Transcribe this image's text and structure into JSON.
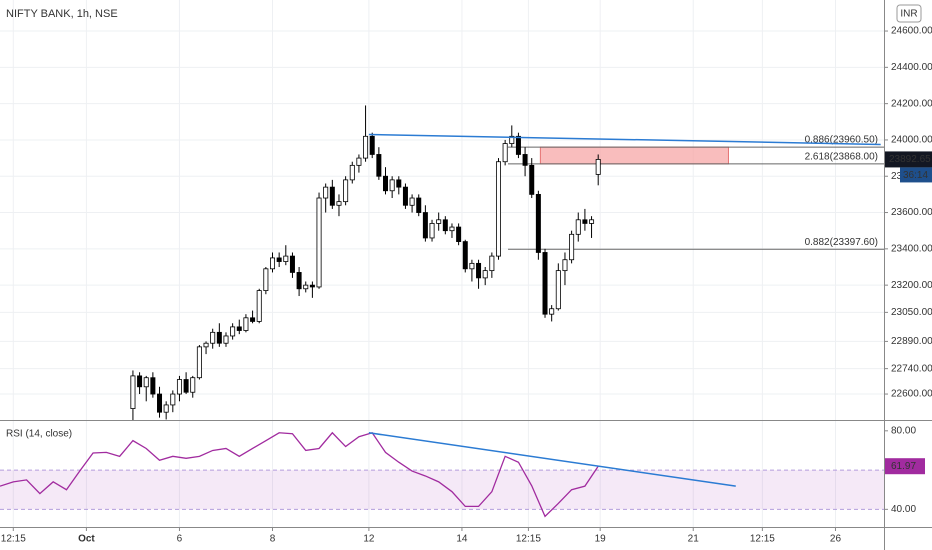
{
  "chart_data": [
    {
      "type": "candlestick",
      "title": "NIFTY BANK, 1h, NSE",
      "currency": "INR",
      "x": [
        0,
        1,
        2,
        3,
        4,
        5,
        6,
        7,
        8,
        9,
        10,
        11,
        12,
        13,
        14,
        15,
        16,
        17,
        18,
        19,
        20,
        21,
        22,
        23,
        24,
        25,
        26,
        27,
        28,
        29,
        30,
        31,
        32,
        33,
        34,
        35,
        36,
        37,
        38,
        39,
        40,
        41,
        42,
        43,
        44,
        45,
        46,
        47,
        48,
        49,
        50,
        51,
        52,
        53,
        54,
        55,
        56,
        57,
        58,
        59,
        60,
        61,
        62,
        63,
        64,
        65,
        66,
        67,
        68,
        69,
        70
      ],
      "open": [
        22520,
        22700,
        22640,
        22690,
        22600,
        22500,
        22540,
        22600,
        22680,
        22610,
        22690,
        22860,
        22880,
        22940,
        22880,
        22920,
        22970,
        22950,
        23020,
        23000,
        23170,
        23290,
        23350,
        23330,
        23360,
        23270,
        23180,
        23200,
        23190,
        23680,
        23740,
        23640,
        23660,
        23780,
        23860,
        23900,
        24020,
        23920,
        23800,
        23720,
        23780,
        23740,
        23640,
        23680,
        23600,
        23460,
        23540,
        23560,
        23500,
        23520,
        23440,
        23290,
        23320,
        23240,
        23280,
        23360,
        23880,
        23980,
        24020,
        23920,
        23860,
        23700,
        23380,
        23040,
        23070,
        23280,
        23340,
        23480,
        23560,
        23540,
        23810
      ],
      "high": [
        22730,
        22720,
        22700,
        22720,
        22640,
        22560,
        22620,
        22700,
        22720,
        22700,
        22870,
        22890,
        22960,
        22990,
        22940,
        22990,
        23010,
        23040,
        23060,
        23180,
        23300,
        23380,
        23380,
        23420,
        23380,
        23300,
        23220,
        23220,
        23710,
        23760,
        23780,
        23700,
        23800,
        23880,
        23920,
        24190,
        24040,
        23960,
        23850,
        23800,
        23800,
        23760,
        23700,
        23700,
        23640,
        23560,
        23600,
        23580,
        23540,
        23540,
        23450,
        23340,
        23340,
        23300,
        23380,
        23900,
        24000,
        24080,
        24040,
        23960,
        23900,
        23720,
        23400,
        23090,
        23320,
        23380,
        23500,
        23600,
        23620,
        23580,
        23920
      ],
      "low": [
        22450,
        22600,
        22560,
        22580,
        22470,
        22460,
        22500,
        22560,
        22600,
        22580,
        22680,
        22820,
        22850,
        22860,
        22860,
        22900,
        22930,
        22940,
        22990,
        22990,
        23150,
        23270,
        23300,
        23310,
        23240,
        23140,
        23160,
        23130,
        23180,
        23600,
        23620,
        23580,
        23640,
        23760,
        23820,
        23880,
        23900,
        23780,
        23700,
        23680,
        23700,
        23620,
        23600,
        23580,
        23440,
        23440,
        23500,
        23480,
        23460,
        23420,
        23270,
        23220,
        23180,
        23200,
        23240,
        23340,
        23860,
        23960,
        23900,
        23800,
        23680,
        23340,
        23020,
        23000,
        23060,
        23200,
        23320,
        23440,
        23500,
        23460,
        23750
      ],
      "close": [
        22700,
        22640,
        22690,
        22600,
        22500,
        22540,
        22600,
        22680,
        22610,
        22690,
        22860,
        22880,
        22940,
        22880,
        22920,
        22970,
        22950,
        23020,
        23000,
        23170,
        23290,
        23350,
        23330,
        23360,
        23270,
        23180,
        23200,
        23190,
        23680,
        23740,
        23640,
        23660,
        23780,
        23860,
        23900,
        24020,
        23920,
        23800,
        23720,
        23780,
        23740,
        23640,
        23680,
        23600,
        23460,
        23540,
        23560,
        23500,
        23520,
        23440,
        23290,
        23320,
        23240,
        23280,
        23360,
        23880,
        23980,
        24020,
        23920,
        23860,
        23700,
        23380,
        23040,
        23070,
        23280,
        23340,
        23480,
        23560,
        23540,
        23560,
        23892.65
      ],
      "up_color": "#ffffff",
      "down_color": "#000000",
      "xlim": [
        -20,
        113
      ],
      "ylim": [
        22457,
        24771
      ],
      "yticks": [
        {
          "value": 24600,
          "label": "24600.00"
        },
        {
          "value": 24400,
          "label": "24400.00"
        },
        {
          "value": 24200,
          "label": "24200.00"
        },
        {
          "value": 24000,
          "label": "24000.00"
        },
        {
          "value": 23800,
          "label": "23800.00"
        },
        {
          "value": 23600,
          "label": "23600.00"
        },
        {
          "value": 23400,
          "label": "23400.00"
        },
        {
          "value": 23200,
          "label": "23200.00"
        },
        {
          "value": 23050,
          "label": "23050.00"
        },
        {
          "value": 22890,
          "label": "22890.00"
        },
        {
          "value": 22740,
          "label": "22740.00"
        },
        {
          "value": 22600,
          "label": "22600.00"
        }
      ],
      "xticks": [
        {
          "value": -18,
          "label": "12:15"
        },
        {
          "value": -7,
          "label": "Oct"
        },
        {
          "value": 7,
          "label": "6"
        },
        {
          "value": 21,
          "label": "8"
        },
        {
          "value": 35.5,
          "label": "12"
        },
        {
          "value": 49.5,
          "label": "14"
        },
        {
          "value": 59.5,
          "label": "12:15"
        },
        {
          "value": 70.3,
          "label": "19"
        },
        {
          "value": 84.3,
          "label": "21"
        },
        {
          "value": 94.7,
          "label": "12:15"
        },
        {
          "value": 105.7,
          "label": "26"
        }
      ],
      "grid": true,
      "last_price": 23892.65,
      "countdown": "36:14",
      "trend_line": {
        "x": [
          35.5,
          112.5
        ],
        "values": [
          24030,
          23975
        ],
        "color": "#2b7bd3"
      },
      "fib_levels": [
        {
          "value": 23960.5,
          "label": "0.886(23960.50)"
        },
        {
          "value": 23868,
          "label": "2.618(23868.00)"
        },
        {
          "value": 23397.6,
          "label": "0.882(23397.60)"
        }
      ],
      "zone": {
        "x": [
          61.3,
          89.6
        ],
        "values": [
          23960.5,
          23868
        ],
        "color": "#f7a1a1"
      }
    },
    {
      "type": "line",
      "title": "RSI (14, close)",
      "x": [
        -20,
        -18,
        -16,
        -14,
        -12,
        -10,
        -8,
        -6,
        -4,
        -2,
        0,
        2,
        4,
        6,
        8,
        10,
        12,
        14,
        16,
        18,
        20,
        22,
        24,
        26,
        28,
        30,
        32,
        34,
        36,
        38,
        40,
        42,
        44,
        46,
        48,
        50,
        52,
        54,
        56,
        58,
        60,
        62,
        64,
        66,
        68,
        70
      ],
      "series": [
        {
          "name": "RSI",
          "color": "#a12b9f",
          "values": [
            51.8,
            54,
            55,
            48,
            54,
            50,
            59.5,
            68.7,
            69,
            67,
            75,
            71,
            65,
            67,
            66,
            67,
            70,
            71,
            67,
            71,
            75,
            79,
            78.5,
            70,
            71,
            79,
            72,
            77,
            79,
            69,
            64,
            59.5,
            57,
            54,
            49,
            41.5,
            41.5,
            49,
            67,
            64,
            52,
            36.4,
            43,
            50,
            51.8,
            61.97
          ]
        }
      ],
      "ylim": [
        31,
        85
      ],
      "yticks": [
        {
          "value": 80,
          "label": "80.00"
        },
        {
          "value": 40,
          "label": "40.00"
        }
      ],
      "band": [
        60,
        40
      ],
      "trend_line": {
        "x": [
          35.5,
          90.7
        ],
        "values": [
          79,
          51.8
        ],
        "color": "#2b7bd3"
      }
    }
  ]
}
